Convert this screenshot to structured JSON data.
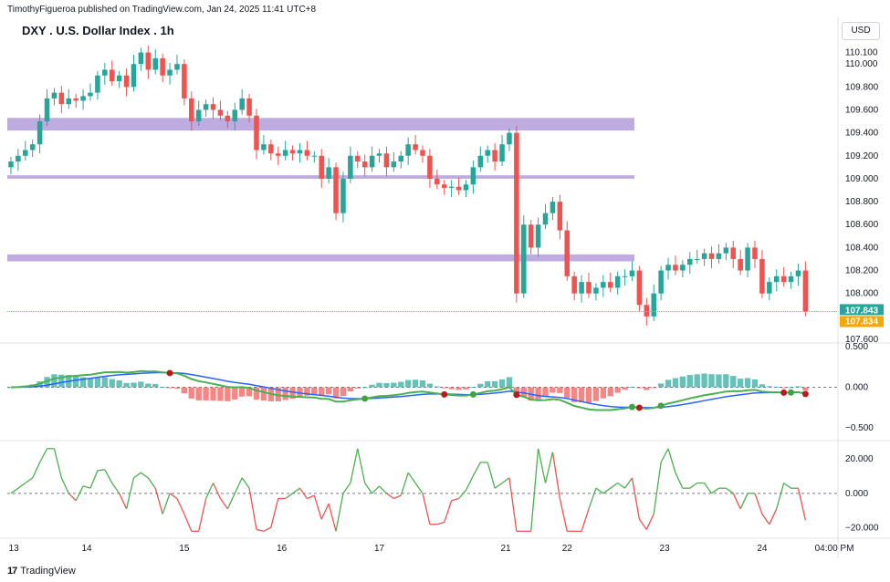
{
  "header": {
    "publisher_line": "TimothyFigueroa published on TradingView.com, Jan 24, 2025 11:41 UTC+8"
  },
  "footer": {
    "logo_text": "TradingView",
    "logo_mark": "17"
  },
  "currency": "USD",
  "colors": {
    "up": "#26a69a",
    "down": "#ef5350",
    "zone": "#b39ddb",
    "price_line": "#f7a600",
    "macd_fast": "#4caf50",
    "macd_slow": "#2962ff",
    "macd_red": "#b71c1c"
  },
  "chart_data": [
    {
      "type": "candlestick",
      "title": "DXY . U.S. Dollar Index . 1h",
      "ylim": [
        107.6,
        110.2
      ],
      "y_ticks": [
        110.1,
        110.0,
        109.8,
        109.6,
        109.4,
        109.2,
        109.0,
        108.8,
        108.6,
        108.4,
        108.2,
        108.0,
        107.6
      ],
      "y_tick_labels": [
        "110.100",
        "110.000",
        "109.800",
        "109.600",
        "109.400",
        "109.200",
        "109.000",
        "108.800",
        "108.600",
        "108.400",
        "108.200",
        "108.000",
        "107.600"
      ],
      "x_tick_labels": [
        "13",
        "14",
        "15",
        "16",
        "17",
        "21",
        "22",
        "23",
        "24",
        "04:00 PM"
      ],
      "x_tick_positions": [
        0.4,
        10.5,
        24.0,
        37.5,
        51.0,
        68.5,
        77.0,
        90.5,
        104.0,
        114.0
      ],
      "zones": [
        {
          "low": 109.42,
          "high": 109.53
        },
        {
          "low": 109.0,
          "high": 109.03
        },
        {
          "low": 108.28,
          "high": 108.34
        }
      ],
      "last_price": 107.843,
      "last_price_label": "107.843",
      "countdown_label": "107.834",
      "closes": [
        109.15,
        109.2,
        109.25,
        109.3,
        109.5,
        109.7,
        109.75,
        109.65,
        109.7,
        109.68,
        109.72,
        109.75,
        109.9,
        109.95,
        109.85,
        109.9,
        109.8,
        110.0,
        110.1,
        109.95,
        110.05,
        109.9,
        109.95,
        110.0,
        109.7,
        109.5,
        109.6,
        109.65,
        109.6,
        109.55,
        109.5,
        109.6,
        109.7,
        109.55,
        109.25,
        109.3,
        109.22,
        109.2,
        109.25,
        109.22,
        109.25,
        109.2,
        109.2,
        109.0,
        109.1,
        108.7,
        109.0,
        109.2,
        109.15,
        109.1,
        109.2,
        109.22,
        109.1,
        109.15,
        109.2,
        109.3,
        109.25,
        109.2,
        109.0,
        108.95,
        108.92,
        108.93,
        108.9,
        108.95,
        109.1,
        109.2,
        109.25,
        109.15,
        109.3,
        109.4,
        108.0,
        108.6,
        108.4,
        108.6,
        108.7,
        108.8,
        108.55,
        108.15,
        108.0,
        108.1,
        108.0,
        108.05,
        108.1,
        108.05,
        108.15,
        108.15,
        108.2,
        107.9,
        107.8,
        108.0,
        108.2,
        108.25,
        108.2,
        108.25,
        108.3,
        108.3,
        108.35,
        108.3,
        108.35,
        108.4,
        108.3,
        108.2,
        108.4,
        108.3,
        108.0,
        108.1,
        108.15,
        108.1,
        108.15,
        108.2,
        107.84
      ],
      "macd": {
        "ylim": [
          -0.6,
          0.5
        ],
        "y_ticks": [
          0.5,
          0.0,
          -0.5
        ],
        "y_tick_labels": [
          "0.500",
          "0.000",
          "−0.500"
        ]
      },
      "oscillator": {
        "ylim": [
          -25,
          28
        ],
        "y_ticks": [
          20,
          0,
          -20
        ],
        "y_tick_labels": [
          "20.000",
          "0.000",
          "−20.000"
        ],
        "midline": 0
      }
    }
  ]
}
